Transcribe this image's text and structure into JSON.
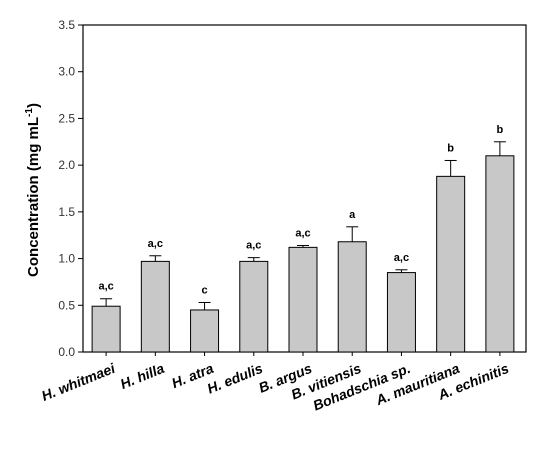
{
  "chart_data": {
    "type": "bar",
    "ylabel_main": "Concentration (mg mL",
    "ylabel_sup": "-1",
    "ylabel_close": ")",
    "ylim": [
      0,
      3.5
    ],
    "yticks": [
      "0.0",
      "0.5",
      "1.0",
      "1.5",
      "2.0",
      "2.5",
      "3.0",
      "3.5"
    ],
    "categories": [
      "H. whitmaei",
      "H. hilla",
      "H. atra",
      "H. edulis",
      "B. argus",
      "B. vitiensis",
      "Bohadschia sp.",
      "A. mauritiana",
      "A. echinitis"
    ],
    "values": [
      0.49,
      0.97,
      0.45,
      0.97,
      1.12,
      1.18,
      0.85,
      1.88,
      2.1
    ],
    "errors": [
      0.08,
      0.06,
      0.08,
      0.04,
      0.02,
      0.16,
      0.03,
      0.17,
      0.15
    ],
    "significance": [
      "a,c",
      "a,c",
      "c",
      "a,c",
      "a,c",
      "a",
      "a,c",
      "b",
      "b"
    ],
    "bar_color": "#c8c8c8",
    "grid": false,
    "legend": "none"
  }
}
